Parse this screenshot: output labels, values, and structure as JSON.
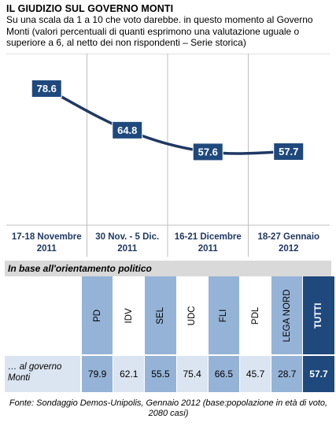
{
  "title": "IL GIUDIZIO  SUL GOVERNO MONTI",
  "subtitle": "Su una scala da 1 a 10 che voto darebbe. in questo momento al Governo Monti (valori percentuali di quanti esprimono una valutazione uguale o superiore a 6,  al netto dei non rispondenti – Serie storica)",
  "chart_data": {
    "type": "line",
    "x": [
      [
        "17-18 Novembre",
        "2011"
      ],
      [
        "30 Nov. - 5 Dic.",
        "2011"
      ],
      [
        "16-21 Dicembre",
        "2011"
      ],
      [
        "18-27 Gennaio",
        "2012"
      ]
    ],
    "values": [
      78.6,
      64.8,
      57.6,
      57.7
    ],
    "value_labels": [
      "78.6",
      "64.8",
      "57.6",
      "57.7"
    ],
    "grid": false,
    "legend": "none",
    "line_color": "#1f3864",
    "label_box_color": "#1f497d",
    "separator_color": "#bfbfbf"
  },
  "table": {
    "section_header": "In base all'orientamento politico",
    "row_label": "… al governo Monti",
    "columns": [
      {
        "name": "PD",
        "value": "79.9",
        "shade": "blue"
      },
      {
        "name": "IDV",
        "value": "62.1",
        "shade": "white"
      },
      {
        "name": "SEL",
        "value": "55.5",
        "shade": "blue"
      },
      {
        "name": "UDC",
        "value": "75.4",
        "shade": "white"
      },
      {
        "name": "FLI",
        "value": "66.5",
        "shade": "blue"
      },
      {
        "name": "PDL",
        "value": "45.7",
        "shade": "white"
      },
      {
        "name": "LEGA NORD",
        "value": "28.7",
        "shade": "blue"
      },
      {
        "name": "TUTTI",
        "value": "57.7",
        "shade": "dark"
      }
    ],
    "colors": {
      "blue": "#95b3d7",
      "light": "#dbe5f1",
      "dark": "#1f497d",
      "header_gray": "#d9d9d9"
    }
  },
  "source": "Fonte: Sondaggio Demos-Unipolis, Gennaio 2012 (base:popolazione in età di voto, 2080 casi)"
}
